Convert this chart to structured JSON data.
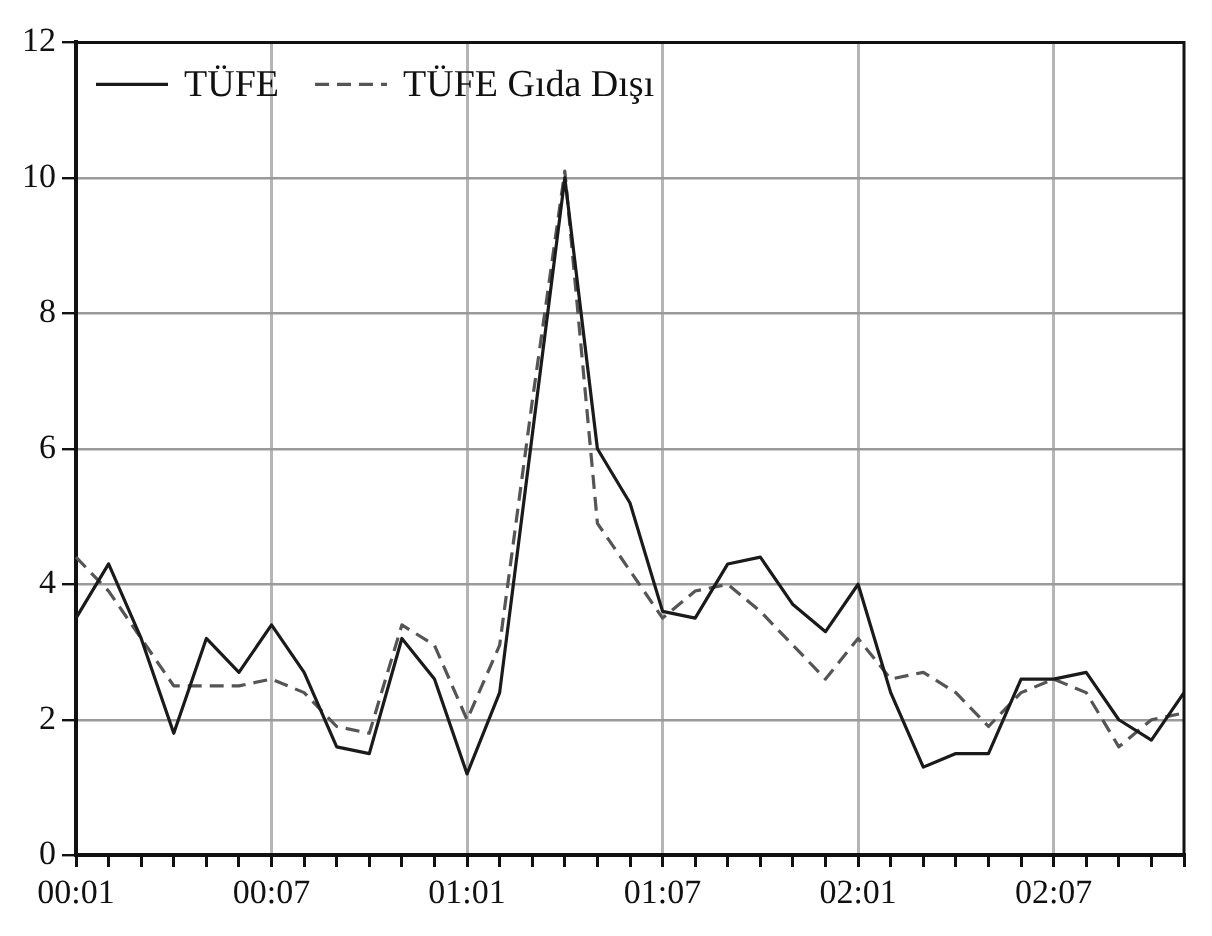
{
  "chart_data": {
    "type": "line",
    "categories": [
      "00:01",
      null,
      null,
      null,
      null,
      null,
      "00:07",
      null,
      null,
      null,
      null,
      null,
      "01:01",
      null,
      null,
      null,
      null,
      null,
      "01:07",
      null,
      null,
      null,
      null,
      null,
      "02:01",
      null,
      null,
      null,
      null,
      null,
      "02:07",
      null,
      null,
      null,
      null
    ],
    "series": [
      {
        "name": "TÜFE",
        "color": "#1a1a1a",
        "line_style": "solid",
        "values": [
          3.5,
          4.3,
          3.2,
          1.8,
          3.2,
          2.7,
          3.4,
          2.7,
          1.6,
          1.5,
          3.2,
          2.6,
          1.2,
          2.4,
          6.2,
          10.0,
          6.0,
          5.2,
          3.6,
          3.5,
          4.3,
          4.4,
          3.7,
          3.3,
          4.0,
          2.4,
          1.3,
          1.5,
          1.5,
          2.6,
          2.6,
          2.7,
          2.0,
          1.7,
          2.4
        ]
      },
      {
        "name": "TÜFE Gıda Dışı",
        "color": "#555555",
        "line_style": "dashed",
        "values": [
          4.4,
          3.9,
          3.2,
          2.5,
          2.5,
          2.5,
          2.6,
          2.4,
          1.9,
          1.8,
          3.4,
          3.1,
          2.0,
          3.1,
          6.7,
          10.1,
          4.9,
          4.2,
          3.5,
          3.9,
          4.0,
          3.6,
          3.1,
          2.6,
          3.2,
          2.6,
          2.7,
          2.4,
          1.9,
          2.4,
          2.6,
          2.4,
          1.6,
          2.0,
          2.1
        ]
      }
    ],
    "ylim": [
      0,
      12
    ],
    "yticks": [
      0,
      2,
      4,
      6,
      8,
      10,
      12
    ],
    "grid": true,
    "legend": "top left",
    "marker": "none"
  }
}
